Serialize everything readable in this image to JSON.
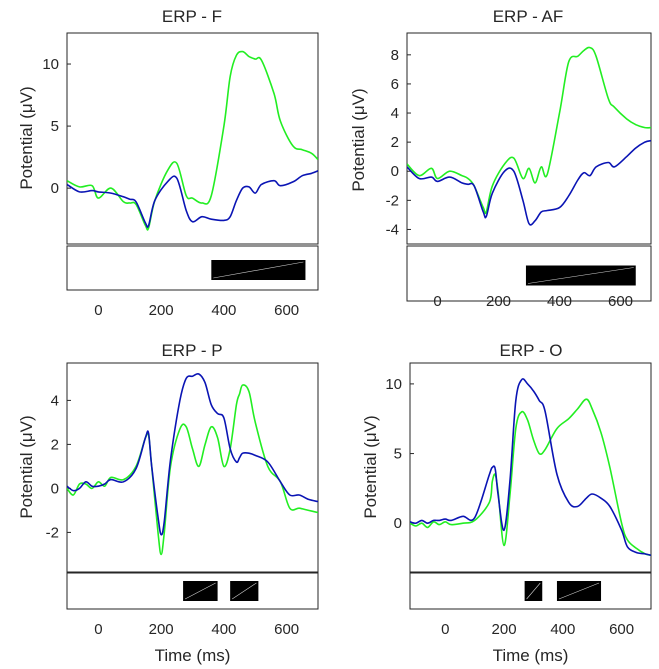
{
  "colors": {
    "green": "#22ee22",
    "blue": "#0a14b4",
    "axis": "#262626"
  },
  "chart_data": [
    {
      "type": "line",
      "title": "ERP - F",
      "ylabel": "Potential (μV)",
      "xlabel": "",
      "xlim": [
        -100,
        700
      ],
      "ylim": [
        -4.5,
        12.5
      ],
      "xticks": [
        0,
        200,
        400,
        600
      ],
      "yticks": [
        0,
        5,
        10
      ],
      "series": [
        {
          "color": "green",
          "x": [
            -100,
            -60,
            -20,
            0,
            40,
            80,
            100,
            120,
            150,
            160,
            180,
            220,
            250,
            280,
            300,
            330,
            360,
            400,
            420,
            440,
            460,
            480,
            500,
            520,
            560,
            580,
            620,
            650,
            680,
            700
          ],
          "y": [
            0.6,
            0.1,
            0.2,
            -0.8,
            0,
            -1.1,
            -1.2,
            -1.3,
            -3,
            -3.2,
            -1,
            1.4,
            2,
            -0.6,
            -0.8,
            -1.2,
            -0.6,
            5,
            9,
            10.7,
            11,
            10.6,
            10.4,
            10.3,
            7.6,
            5.4,
            3.4,
            3.1,
            2.8,
            2.3
          ]
        },
        {
          "color": "blue",
          "x": [
            -100,
            -60,
            -20,
            0,
            40,
            80,
            100,
            120,
            150,
            160,
            180,
            220,
            250,
            280,
            300,
            330,
            360,
            400,
            420,
            440,
            460,
            480,
            500,
            520,
            560,
            580,
            620,
            650,
            680,
            700
          ],
          "y": [
            0.3,
            -0.3,
            -0.2,
            -0.3,
            -0.4,
            -0.7,
            -0.9,
            -1.1,
            -2.8,
            -3,
            -1,
            0.5,
            0.8,
            -1.8,
            -2.7,
            -2.3,
            -2.5,
            -2.6,
            -2.3,
            -1,
            0,
            0.1,
            -0.4,
            0.3,
            0.6,
            0.2,
            0.5,
            1,
            1.2,
            1.4
          ]
        }
      ],
      "bars": [
        [
          360,
          660
        ]
      ]
    },
    {
      "type": "line",
      "title": "ERP - AF",
      "ylabel": "Potential (μV)",
      "xlabel": "",
      "xlim": [
        -100,
        700
      ],
      "ylim": [
        -5,
        9.5
      ],
      "xticks": [
        0,
        200,
        400,
        600
      ],
      "yticks": [
        -4,
        -2,
        0,
        2,
        4,
        6,
        8
      ],
      "series": [
        {
          "color": "green",
          "x": [
            -100,
            -60,
            -20,
            0,
            40,
            80,
            100,
            120,
            150,
            160,
            180,
            220,
            250,
            280,
            300,
            320,
            340,
            360,
            400,
            430,
            460,
            480,
            500,
            520,
            560,
            580,
            620,
            650,
            680,
            700
          ],
          "y": [
            0.5,
            -0.3,
            0.2,
            -0.5,
            0,
            -0.3,
            -0.5,
            -1,
            -2.5,
            -2.8,
            -1,
            0.5,
            0.9,
            -0.5,
            0.2,
            -0.8,
            0.3,
            -0.2,
            4,
            7.5,
            7.9,
            8.3,
            8.5,
            7.9,
            5,
            4.4,
            3.6,
            3.2,
            3,
            3
          ]
        },
        {
          "color": "blue",
          "x": [
            -100,
            -60,
            -20,
            0,
            40,
            80,
            100,
            120,
            150,
            160,
            180,
            220,
            250,
            280,
            300,
            320,
            340,
            360,
            400,
            430,
            460,
            480,
            500,
            520,
            560,
            580,
            620,
            650,
            680,
            700
          ],
          "y": [
            0.3,
            -0.5,
            -0.4,
            -0.7,
            -0.4,
            -0.8,
            -0.9,
            -1,
            -2.8,
            -3.1,
            -1.5,
            0,
            0,
            -2,
            -3.6,
            -3.4,
            -2.8,
            -2.7,
            -2.5,
            -1.7,
            -0.6,
            -0.1,
            -0.3,
            0.3,
            0.6,
            0.3,
            1,
            1.6,
            2,
            2.1
          ]
        }
      ],
      "bars": [
        [
          290,
          650
        ]
      ]
    },
    {
      "type": "line",
      "title": "ERP - P",
      "ylabel": "Potential (μV)",
      "xlabel": "Time (ms)",
      "xlim": [
        -100,
        700
      ],
      "ylim": [
        -3.8,
        5.7
      ],
      "xticks": [
        0,
        200,
        400,
        600
      ],
      "yticks": [
        -2,
        0,
        2,
        4
      ],
      "series": [
        {
          "color": "green",
          "x": [
            -100,
            -80,
            -60,
            -40,
            -20,
            0,
            20,
            40,
            80,
            120,
            150,
            160,
            170,
            190,
            200,
            210,
            230,
            260,
            280,
            300,
            320,
            340,
            360,
            380,
            400,
            420,
            440,
            450,
            460,
            480,
            500,
            540,
            580,
            610,
            640,
            670,
            700
          ],
          "y": [
            0,
            -0.3,
            0.2,
            0.2,
            0,
            0.3,
            0.1,
            0.5,
            0.4,
            1,
            2.3,
            2.4,
            1,
            -2,
            -3,
            -2,
            1,
            2.7,
            2.8,
            1.8,
            1,
            2,
            2.8,
            2.3,
            1,
            1.8,
            3.8,
            4.3,
            4.7,
            4.4,
            3,
            1,
            0.3,
            -0.9,
            -0.9,
            -1,
            -1.1
          ]
        },
        {
          "color": "blue",
          "x": [
            -100,
            -80,
            -60,
            -40,
            -20,
            0,
            20,
            40,
            80,
            120,
            150,
            160,
            170,
            190,
            200,
            210,
            230,
            260,
            280,
            300,
            320,
            340,
            360,
            380,
            400,
            420,
            440,
            450,
            460,
            480,
            500,
            540,
            580,
            610,
            640,
            670,
            700
          ],
          "y": [
            0.1,
            -0.1,
            0,
            0.3,
            0.1,
            0.1,
            0.2,
            0.4,
            0.3,
            0.9,
            2.3,
            2.5,
            1,
            -1.3,
            -2.1,
            -1.5,
            1.3,
            4,
            5,
            5.1,
            5.2,
            4.8,
            3.8,
            3.4,
            3.2,
            1.8,
            1.2,
            1.4,
            1.6,
            1.6,
            1.5,
            1.2,
            0.3,
            -0.3,
            -0.3,
            -0.5,
            -0.6
          ]
        }
      ],
      "bars": [
        [
          270,
          380
        ],
        [
          420,
          510
        ]
      ]
    },
    {
      "type": "line",
      "title": "ERP - O",
      "ylabel": "Potential (μV)",
      "xlabel": "Time (ms)",
      "xlim": [
        -120,
        700
      ],
      "ylim": [
        -3.5,
        11.5
      ],
      "xticks": [
        0,
        200,
        400,
        600
      ],
      "yticks": [
        0,
        5,
        10
      ],
      "series": [
        {
          "color": "green",
          "x": [
            -120,
            -100,
            -80,
            -60,
            -40,
            -20,
            0,
            20,
            60,
            100,
            150,
            160,
            170,
            180,
            200,
            220,
            240,
            260,
            280,
            300,
            320,
            340,
            380,
            420,
            450,
            480,
            500,
            530,
            560,
            600,
            620,
            650,
            680,
            700
          ],
          "y": [
            0,
            -0.2,
            0,
            -0.3,
            0.1,
            -0.1,
            0.1,
            -0.1,
            0,
            0.2,
            1.5,
            3,
            3.5,
            2.2,
            -1.6,
            2,
            6.8,
            8,
            7.4,
            6,
            5,
            5.3,
            6.8,
            7.5,
            8.2,
            8.9,
            8.2,
            6.5,
            4,
            0,
            -1.2,
            -1.8,
            -2.2,
            -2.3
          ]
        },
        {
          "color": "blue",
          "x": [
            -120,
            -100,
            -80,
            -60,
            -40,
            -20,
            0,
            20,
            60,
            100,
            150,
            160,
            170,
            180,
            200,
            220,
            240,
            260,
            280,
            300,
            320,
            340,
            380,
            420,
            450,
            480,
            500,
            530,
            560,
            600,
            620,
            650,
            680,
            700
          ],
          "y": [
            0.1,
            0,
            0.2,
            0,
            0.2,
            0.2,
            0.3,
            0.2,
            0.5,
            0.4,
            3.5,
            4,
            3.9,
            2,
            -0.5,
            3,
            8.8,
            10.3,
            10,
            9.5,
            8.8,
            8,
            3.5,
            1.5,
            1.2,
            1.8,
            2.1,
            1.8,
            1.2,
            -0.5,
            -1.7,
            -2.1,
            -2.2,
            -2.3
          ]
        }
      ],
      "bars": [
        [
          270,
          330
        ],
        [
          380,
          530
        ]
      ]
    }
  ]
}
